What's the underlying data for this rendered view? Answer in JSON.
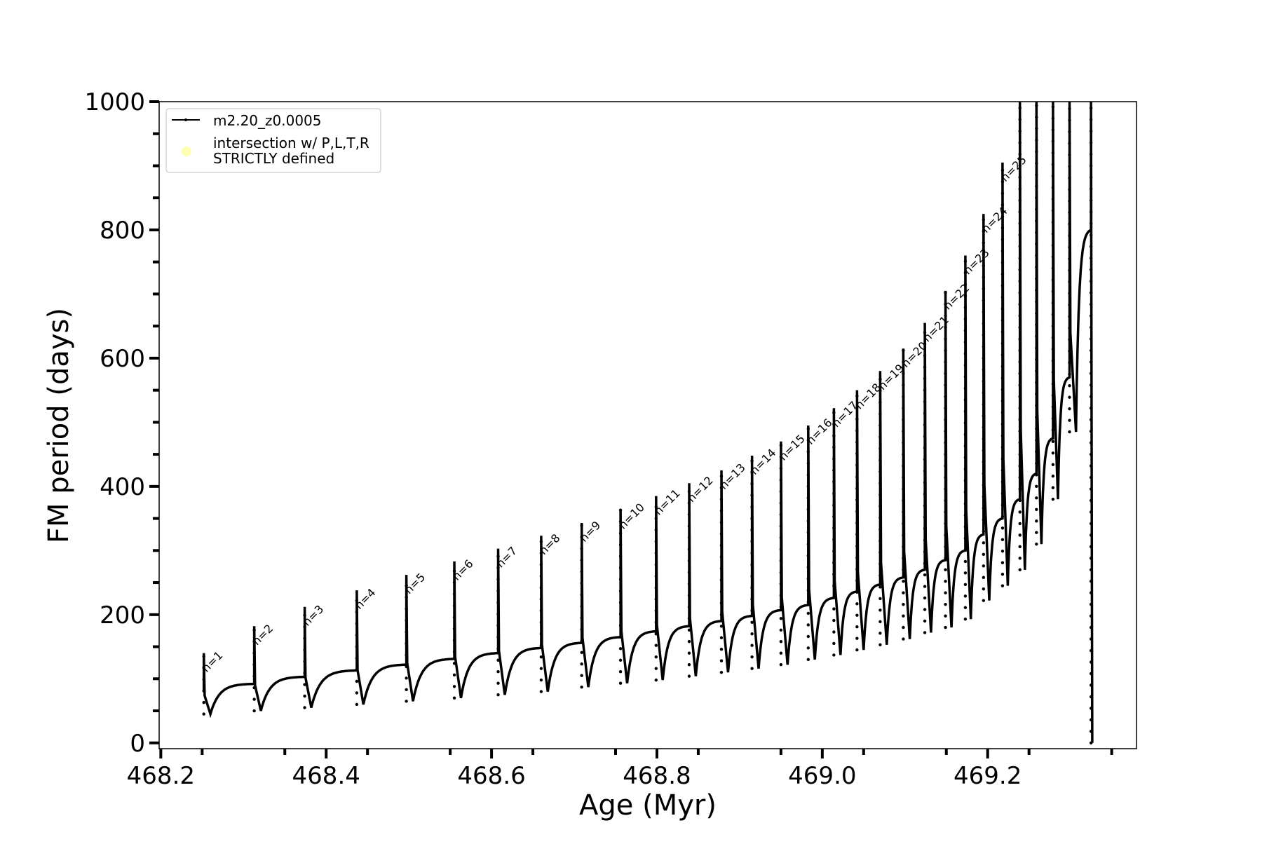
{
  "chart_data": {
    "type": "line",
    "title": "",
    "xlabel": "Age (Myr)",
    "ylabel": "FM period (days)",
    "xlim": [
      468.198,
      469.38
    ],
    "ylim": [
      -9,
      1000
    ],
    "xticks": [
      468.2,
      468.4,
      468.6,
      468.8,
      469.0,
      469.2
    ],
    "xtick_labels": [
      "468.2",
      "468.4",
      "468.6",
      "468.8",
      "469.0",
      "469.2"
    ],
    "yticks": [
      0,
      200,
      400,
      600,
      800,
      1000
    ],
    "ytick_labels": [
      "0",
      "200",
      "400",
      "600",
      "800",
      "1000"
    ],
    "grid": false,
    "legend": {
      "placement": "top-left",
      "entries": [
        {
          "label": "m2.20_z0.0005",
          "color": "#000000",
          "marker": "line-dot"
        },
        {
          "label": "intersection w/ P,L,T,R\nSTRICTLY defined",
          "color": "#ffffb0",
          "marker": "circle"
        }
      ]
    },
    "series": [
      {
        "name": "m2.20_z0.0005",
        "color": "#000000",
        "start_value": 80,
        "pulses": [
          {
            "label": "n=1",
            "age": 468.252,
            "peak": 140,
            "min": 45,
            "plateau": 92
          },
          {
            "label": "n=2",
            "age": 468.313,
            "peak": 182,
            "min": 50,
            "plateau": 103
          },
          {
            "label": "n=3",
            "age": 468.374,
            "peak": 212,
            "min": 55,
            "plateau": 113
          },
          {
            "label": "n=4",
            "age": 468.437,
            "peak": 238,
            "min": 60,
            "plateau": 122
          },
          {
            "label": "n=5",
            "age": 468.497,
            "peak": 262,
            "min": 65,
            "plateau": 131
          },
          {
            "label": "n=6",
            "age": 468.555,
            "peak": 283,
            "min": 70,
            "plateau": 140
          },
          {
            "label": "n=7",
            "age": 468.608,
            "peak": 303,
            "min": 75,
            "plateau": 148
          },
          {
            "label": "n=8",
            "age": 468.66,
            "peak": 323,
            "min": 80,
            "plateau": 156
          },
          {
            "label": "n=9",
            "age": 468.709,
            "peak": 343,
            "min": 87,
            "plateau": 165
          },
          {
            "label": "n=10",
            "age": 468.756,
            "peak": 363,
            "min": 93,
            "plateau": 174
          },
          {
            "label": "n=11",
            "age": 468.799,
            "peak": 385,
            "min": 98,
            "plateau": 182
          },
          {
            "label": "n=12",
            "age": 468.839,
            "peak": 405,
            "min": 104,
            "plateau": 190
          },
          {
            "label": "n=13",
            "age": 468.878,
            "peak": 425,
            "min": 110,
            "plateau": 198
          },
          {
            "label": "n=14",
            "age": 468.915,
            "peak": 448,
            "min": 116,
            "plateau": 207
          },
          {
            "label": "n=15",
            "age": 468.95,
            "peak": 470,
            "min": 122,
            "plateau": 215
          },
          {
            "label": "n=16",
            "age": 468.983,
            "peak": 495,
            "min": 130,
            "plateau": 226
          },
          {
            "label": "n=17",
            "age": 469.014,
            "peak": 522,
            "min": 137,
            "plateau": 236
          },
          {
            "label": "n=18",
            "age": 469.042,
            "peak": 550,
            "min": 145,
            "plateau": 247
          },
          {
            "label": "n=19",
            "age": 469.07,
            "peak": 580,
            "min": 153,
            "plateau": 258
          },
          {
            "label": "n=20",
            "age": 469.098,
            "peak": 615,
            "min": 162,
            "plateau": 270
          },
          {
            "label": "n=21",
            "age": 469.124,
            "peak": 655,
            "min": 172,
            "plateau": 285
          },
          {
            "label": "n=22",
            "age": 469.149,
            "peak": 705,
            "min": 180,
            "plateau": 300
          },
          {
            "label": "n=23",
            "age": 469.173,
            "peak": 760,
            "min": 193,
            "plateau": 325
          },
          {
            "label": "n=24",
            "age": 469.195,
            "peak": 825,
            "min": 222,
            "plateau": 350
          },
          {
            "label": "n=25",
            "age": 469.218,
            "peak": 905,
            "min": 245,
            "plateau": 380
          },
          {
            "label": "",
            "age": 469.239,
            "peak": 1000,
            "min": 270,
            "plateau": 420
          },
          {
            "label": "",
            "age": 469.259,
            "peak": 1000,
            "min": 310,
            "plateau": 475
          },
          {
            "label": "",
            "age": 469.279,
            "peak": 1000,
            "min": 380,
            "plateau": 570
          },
          {
            "label": "",
            "age": 469.299,
            "peak": 1000,
            "min": 485,
            "plateau": 800
          },
          {
            "label": "",
            "age": 469.325,
            "peak": 1000,
            "min": 0,
            "plateau": 0
          }
        ]
      }
    ]
  }
}
